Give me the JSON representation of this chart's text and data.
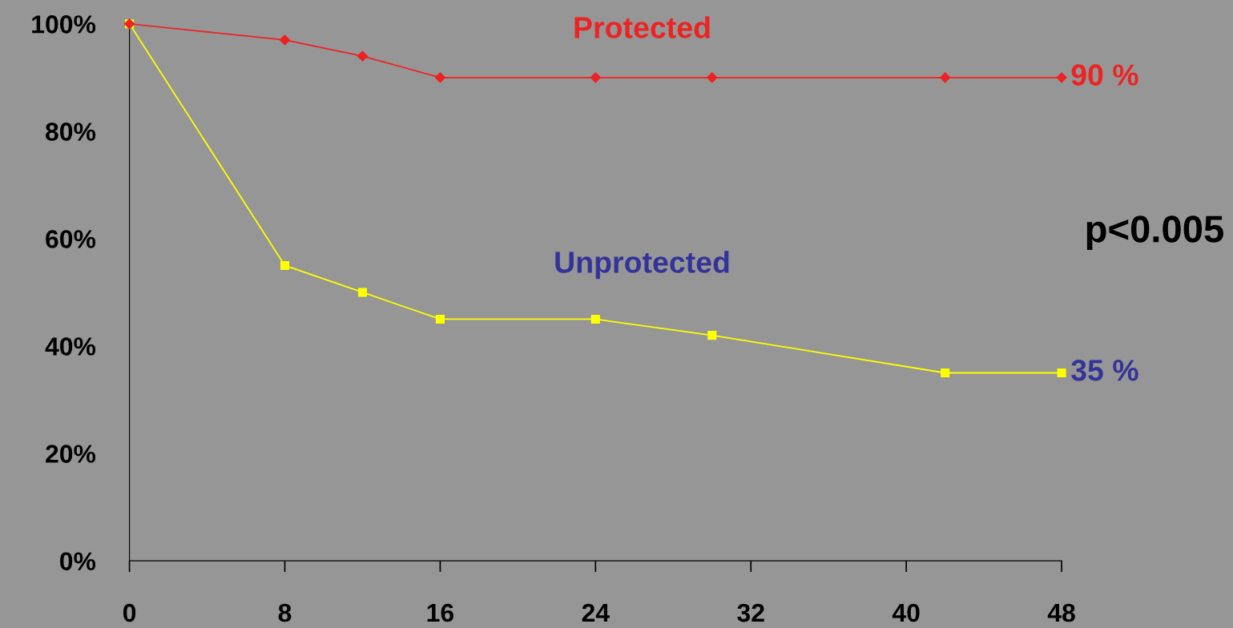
{
  "chart_data": {
    "type": "line",
    "x": [
      0,
      8,
      12,
      16,
      24,
      30,
      42,
      48
    ],
    "series": [
      {
        "name": "Protected",
        "color": "#ee2222",
        "marker": "diamond",
        "values": [
          100,
          97,
          94,
          90,
          90,
          90,
          90,
          90
        ],
        "value_labels": [
          null,
          null,
          null,
          null,
          null,
          null,
          null,
          "90 %"
        ]
      },
      {
        "name": "Unprotected",
        "color": "#ffff00",
        "marker": "square",
        "values": [
          100,
          55,
          50,
          45,
          45,
          42,
          35,
          35
        ],
        "value_labels": [
          null,
          null,
          null,
          null,
          null,
          null,
          null,
          "35 %"
        ]
      }
    ],
    "xlim": [
      0,
      48
    ],
    "xticks": [
      0,
      8,
      16,
      24,
      32,
      40,
      48
    ],
    "ylim": [
      0,
      100
    ],
    "yticks": [
      {
        "value": 0,
        "label": "0%"
      },
      {
        "value": 20,
        "label": "20%"
      },
      {
        "value": 40,
        "label": "40%"
      },
      {
        "value": 60,
        "label": "60%"
      },
      {
        "value": 80,
        "label": "80%"
      },
      {
        "value": 100,
        "label": "100%"
      }
    ],
    "annotations": [
      "p<0.005"
    ],
    "grid": false,
    "legend": false,
    "line_style": "solid"
  }
}
